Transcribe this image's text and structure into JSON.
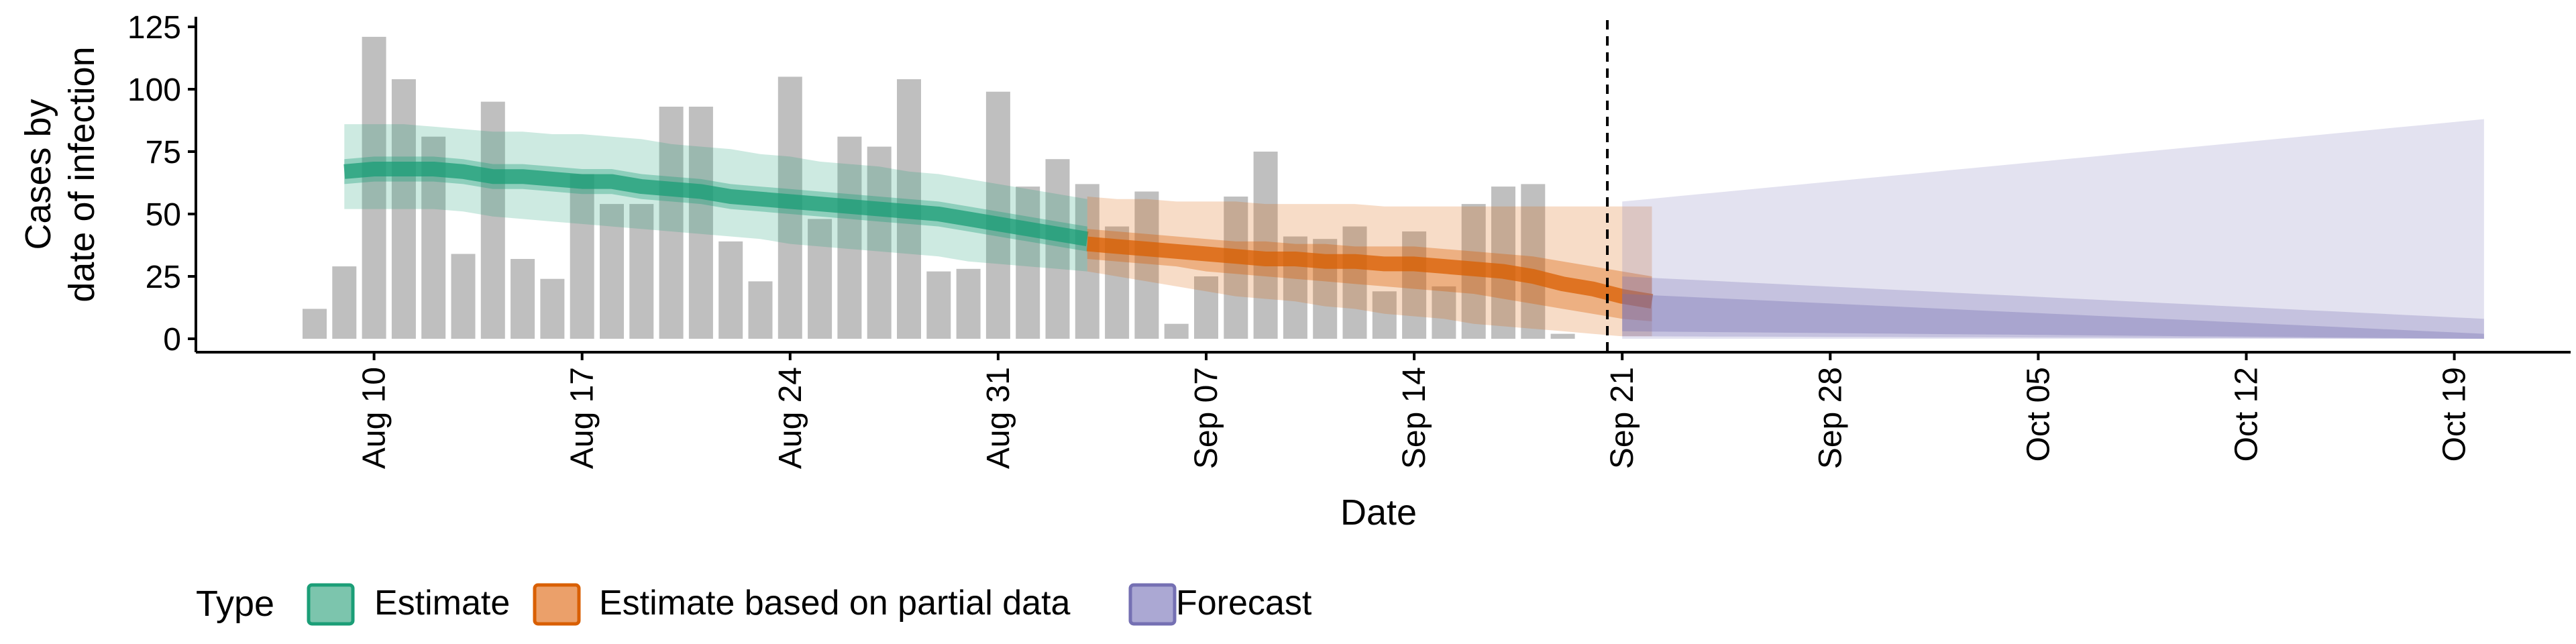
{
  "chart_data": {
    "type": "bar",
    "title": "",
    "xlabel": "Date",
    "ylabel_lines": [
      "Cases by",
      "date of infection"
    ],
    "ylim": [
      0,
      125
    ],
    "y_ticks": [
      0,
      25,
      50,
      75,
      100,
      125
    ],
    "x_start": "2020-08-08",
    "x_ticks": [
      {
        "date": "2020-08-10",
        "label": "Aug 10"
      },
      {
        "date": "2020-08-17",
        "label": "Aug 17"
      },
      {
        "date": "2020-08-24",
        "label": "Aug 24"
      },
      {
        "date": "2020-08-31",
        "label": "Aug 31"
      },
      {
        "date": "2020-09-07",
        "label": "Sep 07"
      },
      {
        "date": "2020-09-14",
        "label": "Sep 14"
      },
      {
        "date": "2020-09-21",
        "label": "Sep 21"
      },
      {
        "date": "2020-09-28",
        "label": "Sep 28"
      },
      {
        "date": "2020-10-05",
        "label": "Oct 05"
      },
      {
        "date": "2020-10-12",
        "label": "Oct 12"
      },
      {
        "date": "2020-10-19",
        "label": "Oct 19"
      }
    ],
    "reported_cases": [
      12,
      29,
      121,
      104,
      81,
      34,
      95,
      32,
      24,
      66,
      54,
      54,
      93,
      93,
      39,
      23,
      105,
      48,
      81,
      77,
      104,
      27,
      28,
      99,
      61,
      72,
      62,
      45,
      59,
      6,
      25,
      57,
      75,
      41,
      40,
      45,
      19,
      43,
      21,
      54,
      61,
      62,
      2
    ],
    "forecast_date": "2020-09-20",
    "series": [
      {
        "name": "Estimate",
        "color": "#1b9e77",
        "start": "2020-08-09",
        "median": [
          67,
          68,
          68,
          68,
          67,
          65,
          65,
          64,
          63,
          63,
          61,
          60,
          59,
          57,
          56,
          55,
          54,
          53,
          52,
          51,
          50,
          48,
          46,
          44,
          42,
          40
        ],
        "lower_50": [
          62,
          63,
          63,
          63,
          62,
          60,
          60,
          59,
          58,
          58,
          56,
          55,
          54,
          52,
          51,
          50,
          49,
          48,
          47,
          46,
          45,
          43,
          41,
          39,
          37,
          35
        ],
        "upper_50": [
          72,
          73,
          73,
          73,
          72,
          70,
          70,
          69,
          68,
          68,
          66,
          65,
          64,
          62,
          61,
          60,
          59,
          58,
          57,
          56,
          55,
          53,
          51,
          49,
          47,
          45
        ],
        "lower_90": [
          52,
          52,
          52,
          52,
          51,
          49,
          48,
          47,
          46,
          45,
          44,
          43,
          42,
          41,
          40,
          38,
          37,
          36,
          35,
          34,
          33,
          31,
          30,
          29,
          28,
          27
        ],
        "upper_90": [
          86,
          86,
          86,
          85,
          84,
          83,
          83,
          82,
          82,
          81,
          80,
          78,
          77,
          76,
          74,
          73,
          71,
          70,
          69,
          67,
          66,
          64,
          62,
          60,
          58,
          56
        ]
      },
      {
        "name": "Estimate based on partial data",
        "color": "#d95f02",
        "start": "2020-09-03",
        "median": [
          38,
          37,
          36,
          35,
          34,
          33,
          32,
          32,
          31,
          31,
          30,
          30,
          29,
          28,
          27,
          25,
          22,
          20,
          17,
          15
        ],
        "lower_50": [
          32,
          31,
          30,
          29,
          27,
          26,
          25,
          24,
          23,
          22,
          21,
          20,
          19,
          18,
          16,
          14,
          12,
          10,
          8,
          7
        ],
        "upper_50": [
          44,
          43,
          42,
          41,
          40,
          39,
          39,
          38,
          38,
          37,
          37,
          37,
          36,
          35,
          34,
          33,
          31,
          29,
          27,
          25
        ],
        "lower_90": [
          27,
          25,
          23,
          21,
          19,
          17,
          16,
          15,
          13,
          12,
          10,
          9,
          8,
          6,
          5,
          4,
          3,
          2,
          1,
          1
        ],
        "upper_90": [
          57,
          56,
          56,
          55,
          55,
          55,
          54,
          54,
          54,
          54,
          53,
          53,
          53,
          53,
          53,
          53,
          53,
          53,
          53,
          53
        ]
      },
      {
        "name": "Forecast",
        "color": "#7570b3",
        "start": "2020-09-21",
        "end": "2020-10-20",
        "median_start": 12,
        "median_end": 0,
        "lower_50_start": 3,
        "lower_50_end": 0,
        "upper_50_start": 18,
        "upper_50_end": 2,
        "lower_90_start": 1,
        "lower_90_end": 0,
        "upper_90_start": 25,
        "upper_90_end": 8,
        "outer_start": 55,
        "outer_end": 88
      }
    ],
    "legend": {
      "title": "Type",
      "position": "bottom",
      "entries": [
        "Estimate",
        "Estimate based on partial data",
        "Forecast"
      ]
    },
    "grid": false
  }
}
